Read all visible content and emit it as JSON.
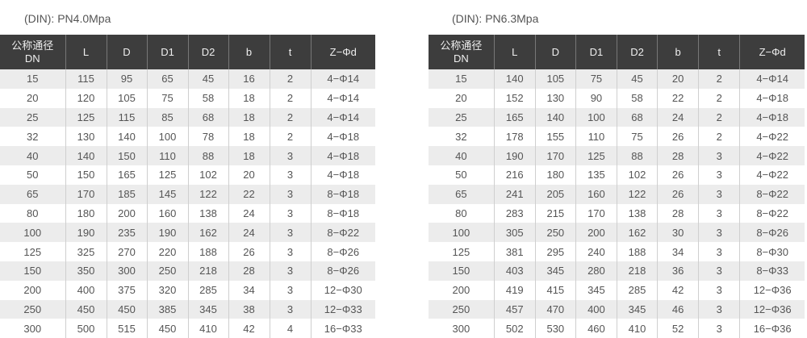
{
  "headers": [
    "公称通径\nDN",
    "L",
    "D",
    "D1",
    "D2",
    "b",
    "t",
    "Z−Φd"
  ],
  "tables": [
    {
      "title": "(DIN): PN4.0Mpa",
      "rows": [
        [
          "15",
          "115",
          "95",
          "65",
          "45",
          "16",
          "2",
          "4−Φ14"
        ],
        [
          "20",
          "120",
          "105",
          "75",
          "58",
          "18",
          "2",
          "4−Φ14"
        ],
        [
          "25",
          "125",
          "115",
          "85",
          "68",
          "18",
          "2",
          "4−Φ14"
        ],
        [
          "32",
          "130",
          "140",
          "100",
          "78",
          "18",
          "2",
          "4−Φ18"
        ],
        [
          "40",
          "140",
          "150",
          "110",
          "88",
          "18",
          "3",
          "4−Φ18"
        ],
        [
          "50",
          "150",
          "165",
          "125",
          "102",
          "20",
          "3",
          "4−Φ18"
        ],
        [
          "65",
          "170",
          "185",
          "145",
          "122",
          "22",
          "3",
          "8−Φ18"
        ],
        [
          "80",
          "180",
          "200",
          "160",
          "138",
          "24",
          "3",
          "8−Φ18"
        ],
        [
          "100",
          "190",
          "235",
          "190",
          "162",
          "24",
          "3",
          "8−Φ22"
        ],
        [
          "125",
          "325",
          "270",
          "220",
          "188",
          "26",
          "3",
          "8−Φ26"
        ],
        [
          "150",
          "350",
          "300",
          "250",
          "218",
          "28",
          "3",
          "8−Φ26"
        ],
        [
          "200",
          "400",
          "375",
          "320",
          "285",
          "34",
          "3",
          "12−Φ30"
        ],
        [
          "250",
          "450",
          "450",
          "385",
          "345",
          "38",
          "3",
          "12−Φ33"
        ],
        [
          "300",
          "500",
          "515",
          "450",
          "410",
          "42",
          "4",
          "16−Φ33"
        ]
      ]
    },
    {
      "title": "(DIN): PN6.3Mpa",
      "rows": [
        [
          "15",
          "140",
          "105",
          "75",
          "45",
          "20",
          "2",
          "4−Φ14"
        ],
        [
          "20",
          "152",
          "130",
          "90",
          "58",
          "22",
          "2",
          "4−Φ18"
        ],
        [
          "25",
          "165",
          "140",
          "100",
          "68",
          "24",
          "2",
          "4−Φ18"
        ],
        [
          "32",
          "178",
          "155",
          "110",
          "75",
          "26",
          "2",
          "4−Φ22"
        ],
        [
          "40",
          "190",
          "170",
          "125",
          "88",
          "28",
          "3",
          "4−Φ22"
        ],
        [
          "50",
          "216",
          "180",
          "135",
          "102",
          "26",
          "3",
          "4−Φ22"
        ],
        [
          "65",
          "241",
          "205",
          "160",
          "122",
          "26",
          "3",
          "8−Φ22"
        ],
        [
          "80",
          "283",
          "215",
          "170",
          "138",
          "28",
          "3",
          "8−Φ22"
        ],
        [
          "100",
          "305",
          "250",
          "200",
          "162",
          "30",
          "3",
          "8−Φ26"
        ],
        [
          "125",
          "381",
          "295",
          "240",
          "188",
          "34",
          "3",
          "8−Φ30"
        ],
        [
          "150",
          "403",
          "345",
          "280",
          "218",
          "36",
          "3",
          "8−Φ33"
        ],
        [
          "200",
          "419",
          "415",
          "345",
          "285",
          "42",
          "3",
          "12−Φ36"
        ],
        [
          "250",
          "457",
          "470",
          "400",
          "345",
          "46",
          "3",
          "12−Φ36"
        ],
        [
          "300",
          "502",
          "530",
          "460",
          "410",
          "52",
          "3",
          "16−Φ36"
        ]
      ]
    }
  ]
}
